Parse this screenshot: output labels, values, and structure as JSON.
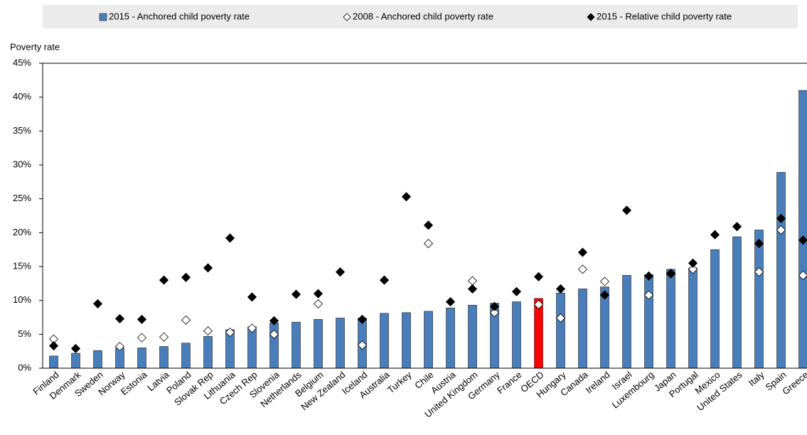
{
  "chart_data": {
    "type": "bar",
    "y_label": "Poverty rate",
    "categories": [
      "Finland",
      "Denmark",
      "Sweden",
      "Norway",
      "Estonia",
      "Latvia",
      "Poland",
      "Slovak Rep",
      "Lithuania",
      "Czech Rep",
      "Slovenia",
      "Netherlands",
      "Belgium",
      "New Zealand",
      "Iceland",
      "Australia",
      "Turkey",
      "Chile",
      "Austria",
      "United Kingdom",
      "Germany",
      "France",
      "OECD",
      "Hungary",
      "Canada",
      "Ireland",
      "Israel",
      "Luxembourg",
      "Japan",
      "Portugal",
      "Mexico",
      "United States",
      "Italy",
      "Spain",
      "Greece"
    ],
    "series": [
      {
        "name": "2015 - Anchored child poverty rate",
        "marker": "bar",
        "color": "#4a7ebb",
        "colors": [
          "#4a7ebb",
          "#4a7ebb",
          "#4a7ebb",
          "#4a7ebb",
          "#4a7ebb",
          "#4a7ebb",
          "#4a7ebb",
          "#4a7ebb",
          "#4a7ebb",
          "#4a7ebb",
          "#4a7ebb",
          "#4a7ebb",
          "#4a7ebb",
          "#4a7ebb",
          "#4a7ebb",
          "#4a7ebb",
          "#4a7ebb",
          "#4a7ebb",
          "#4a7ebb",
          "#4a7ebb",
          "#4a7ebb",
          "#4a7ebb",
          "#ff0000",
          "#4a7ebb",
          "#4a7ebb",
          "#4a7ebb",
          "#4a7ebb",
          "#4a7ebb",
          "#4a7ebb",
          "#4a7ebb",
          "#4a7ebb",
          "#4a7ebb",
          "#4a7ebb",
          "#4a7ebb",
          "#4a7ebb"
        ],
        "values": [
          1.8,
          2.2,
          2.6,
          3.0,
          3.0,
          3.2,
          3.7,
          4.7,
          5.7,
          6.1,
          6.7,
          6.8,
          7.2,
          7.4,
          7.4,
          8.1,
          8.2,
          8.4,
          8.9,
          9.3,
          9.6,
          9.8,
          10.3,
          11.1,
          11.7,
          12.0,
          13.7,
          13.8,
          14.6,
          14.8,
          17.5,
          19.4,
          20.4,
          28.9,
          41.0
        ]
      },
      {
        "name": "2008 - Anchored child poverty rate",
        "marker": "diamond",
        "color": "#ffffff",
        "values": [
          4.3,
          null,
          null,
          3.2,
          4.5,
          4.6,
          7.1,
          5.5,
          5.3,
          5.9,
          5.0,
          null,
          9.5,
          null,
          3.4,
          null,
          null,
          18.4,
          null,
          12.9,
          8.2,
          null,
          9.4,
          7.4,
          14.6,
          12.8,
          null,
          10.8,
          13.9,
          14.6,
          null,
          null,
          14.2,
          20.4,
          13.7
        ]
      },
      {
        "name": "2015 - Relative child poverty rate",
        "marker": "diamond",
        "color": "#000000",
        "values": [
          3.3,
          2.9,
          9.5,
          7.3,
          7.2,
          13.0,
          13.4,
          14.8,
          19.2,
          10.5,
          7.0,
          10.9,
          11.0,
          14.2,
          7.2,
          13.0,
          25.3,
          21.1,
          9.8,
          11.7,
          9.1,
          11.3,
          13.5,
          11.7,
          17.1,
          10.8,
          23.3,
          13.6,
          14.0,
          15.5,
          19.7,
          20.9,
          18.4,
          22.1,
          18.9
        ]
      }
    ],
    "ylim": [
      0,
      45
    ],
    "yticks": [
      {
        "value": 0,
        "label": "0%"
      },
      {
        "value": 5,
        "label": "5%"
      },
      {
        "value": 10,
        "label": "10%"
      },
      {
        "value": 15,
        "label": "15%"
      },
      {
        "value": 20,
        "label": "20%"
      },
      {
        "value": 25,
        "label": "25%"
      },
      {
        "value": 30,
        "label": "30%"
      },
      {
        "value": 35,
        "label": "35%"
      },
      {
        "value": 40,
        "label": "40%"
      },
      {
        "value": 45,
        "label": "45%"
      }
    ],
    "grid": false,
    "legend": "top"
  }
}
